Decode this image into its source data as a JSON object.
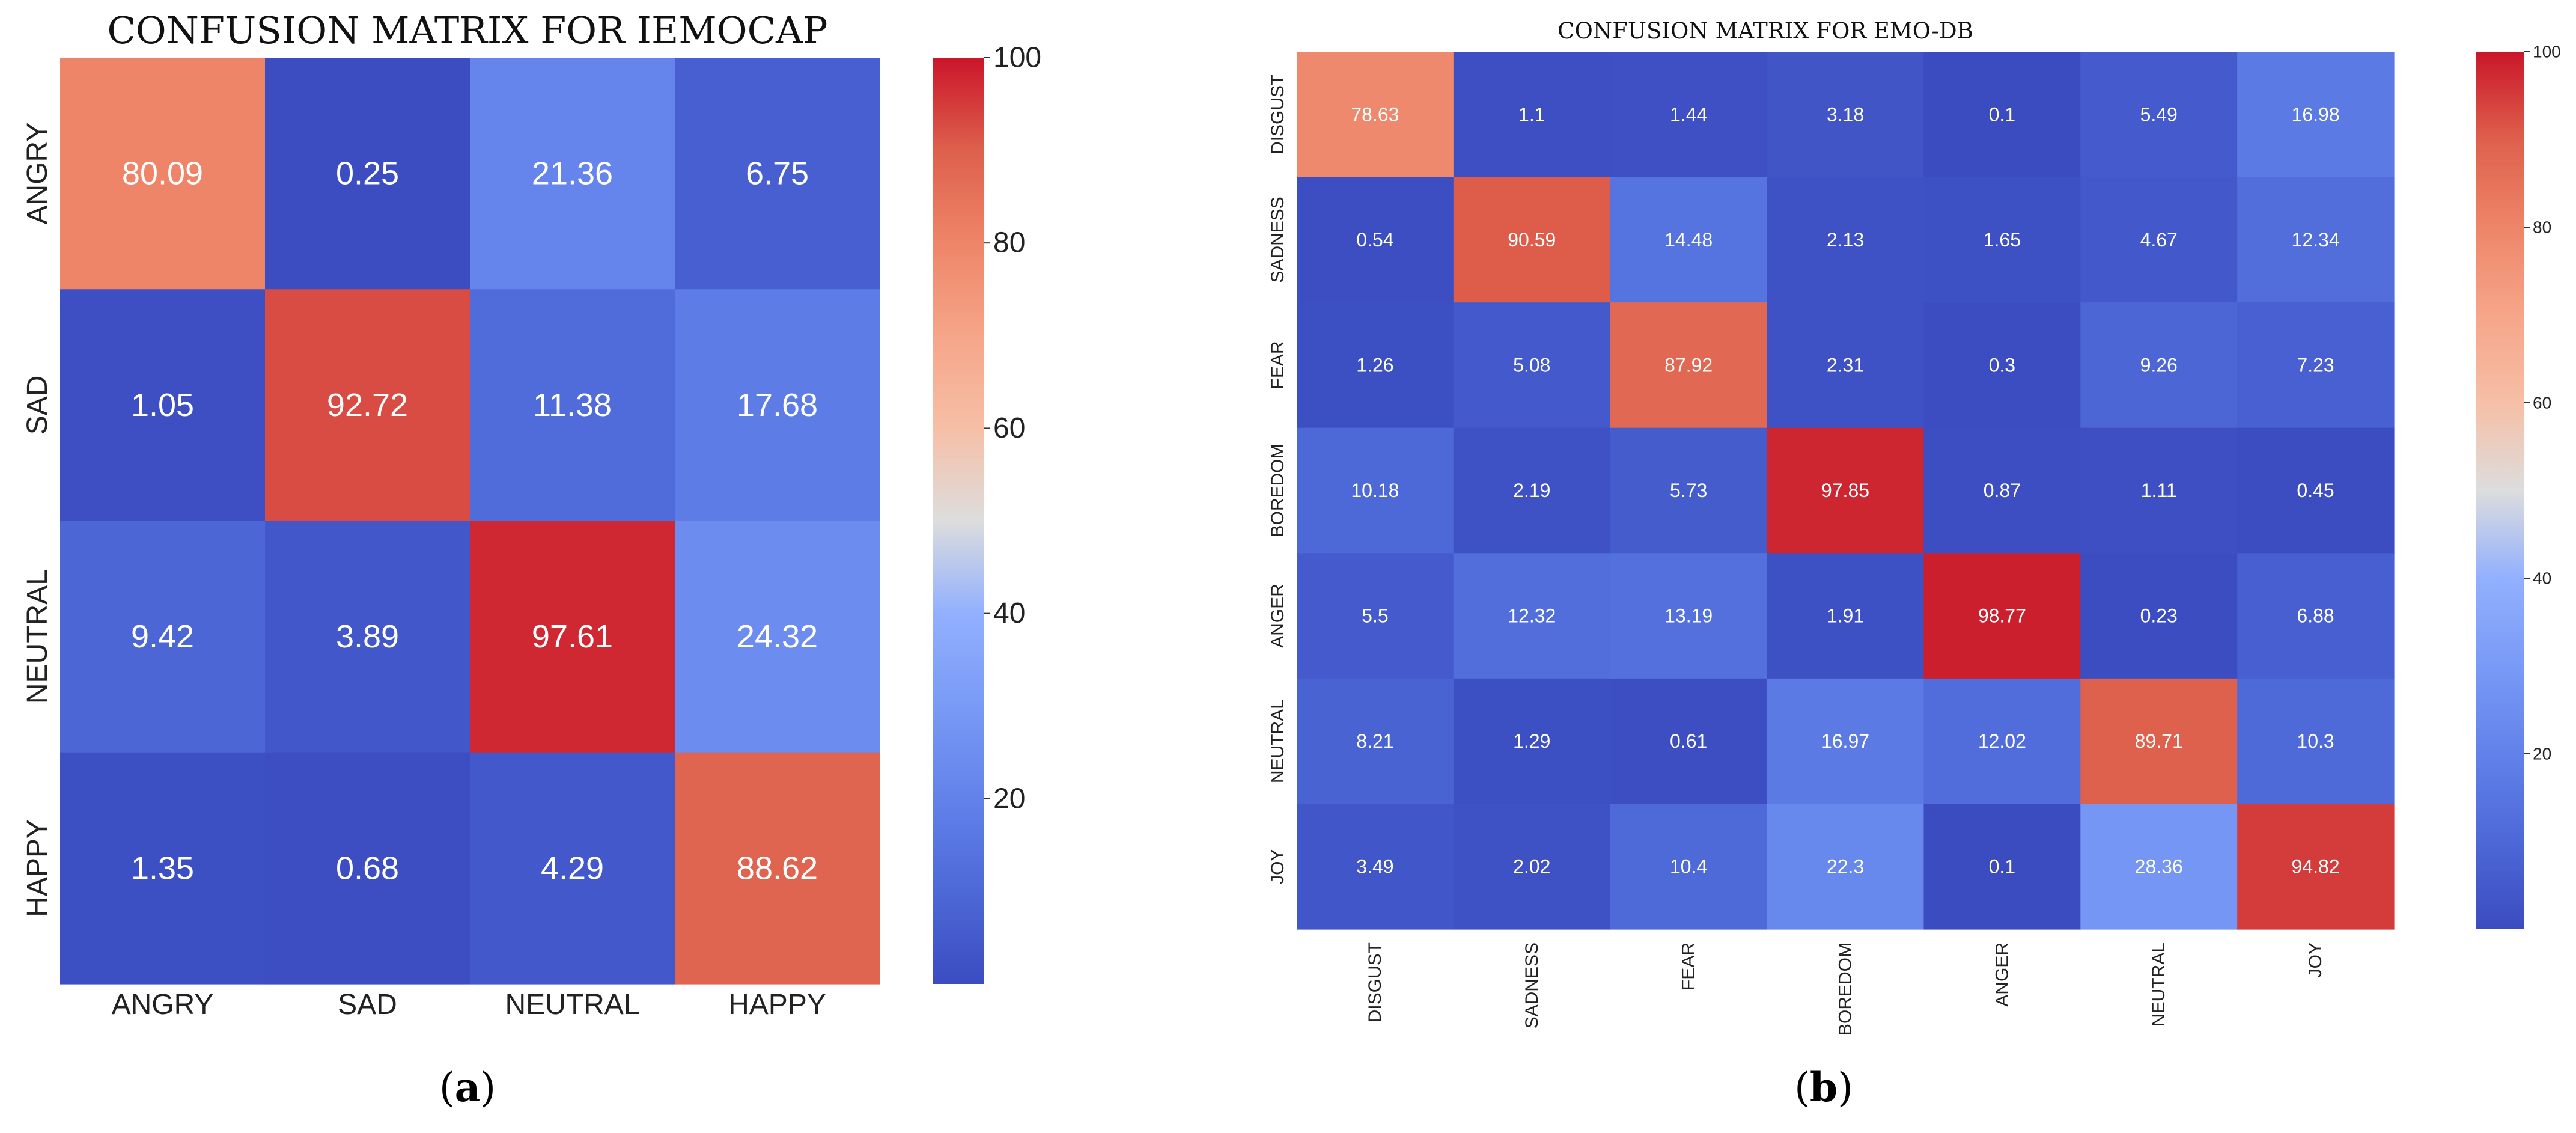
{
  "chart_data": [
    {
      "type": "heatmap",
      "title": "CONFUSION MATRIX FOR IEMOCAP",
      "panel_label_open": "(",
      "panel_label_letter": "a",
      "panel_label_close": ")",
      "row_labels": [
        "ANGRY",
        "SAD",
        "NEUTRAL",
        "HAPPY"
      ],
      "col_labels": [
        "ANGRY",
        "SAD",
        "NEUTRAL",
        "HAPPY"
      ],
      "values": [
        [
          80.09,
          0.25,
          21.36,
          6.75
        ],
        [
          1.05,
          92.72,
          11.38,
          17.68
        ],
        [
          9.42,
          3.89,
          97.61,
          24.32
        ],
        [
          1.35,
          0.68,
          4.29,
          88.62
        ]
      ],
      "colorbar": {
        "colormap": "coolwarm",
        "min": 0,
        "max": 100,
        "ticks": [
          20,
          40,
          60,
          80,
          100
        ]
      }
    },
    {
      "type": "heatmap",
      "title": "CONFUSION MATRIX FOR EMO-DB",
      "panel_label_open": "(",
      "panel_label_letter": "b",
      "panel_label_close": ")",
      "row_labels": [
        "DISGUST",
        "SADNESS",
        "FEAR",
        "BOREDOM",
        "ANGER",
        "NEUTRAL",
        "JOY"
      ],
      "col_labels": [
        "DISGUST",
        "SADNESS",
        "FEAR",
        "BOREDOM",
        "ANGER",
        "NEUTRAL",
        "JOY"
      ],
      "values": [
        [
          78.63,
          1.1,
          1.44,
          3.18,
          0.1,
          5.49,
          16.98
        ],
        [
          0.54,
          90.59,
          14.48,
          2.13,
          1.65,
          4.67,
          12.34
        ],
        [
          1.26,
          5.08,
          87.92,
          2.31,
          0.3,
          9.26,
          7.23
        ],
        [
          10.18,
          2.19,
          5.73,
          97.85,
          0.87,
          1.11,
          0.45
        ],
        [
          5.5,
          12.32,
          13.19,
          1.91,
          98.77,
          0.23,
          6.88
        ],
        [
          8.21,
          1.29,
          0.61,
          16.97,
          12.02,
          89.71,
          10.3
        ],
        [
          3.49,
          2.02,
          10.4,
          22.3,
          0.1,
          28.36,
          94.82
        ]
      ],
      "colorbar": {
        "colormap": "coolwarm",
        "min": 0,
        "max": 100,
        "ticks": [
          20,
          40,
          60,
          80,
          100
        ]
      }
    }
  ]
}
